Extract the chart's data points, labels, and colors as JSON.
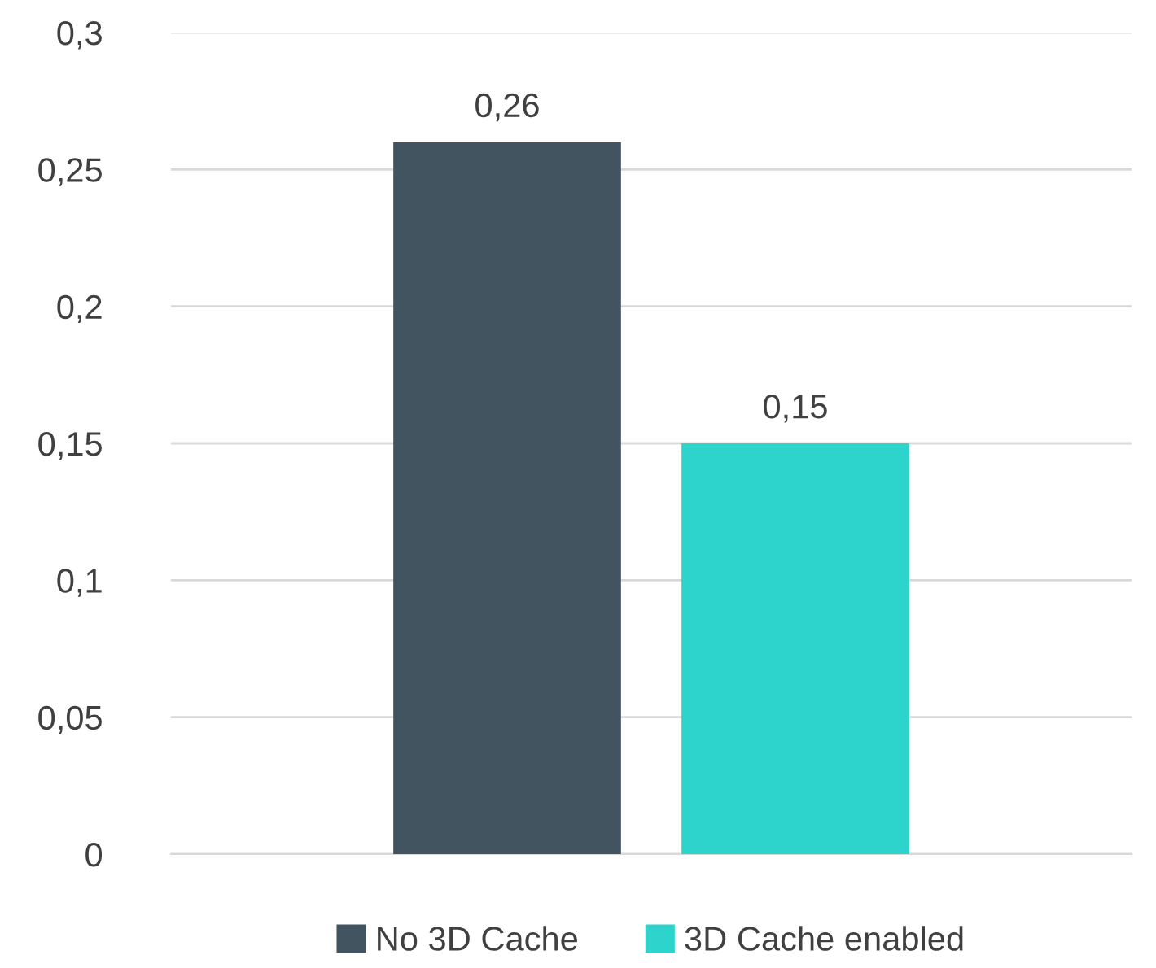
{
  "chart_data": {
    "type": "bar",
    "categories": [
      null
    ],
    "series": [
      {
        "name": "No 3D Cache",
        "color": "#435461",
        "values": [
          0.26
        ],
        "value_labels": [
          "0,26"
        ]
      },
      {
        "name": "3D Cache enabled",
        "color": "#2dd4cc",
        "values": [
          0.15
        ],
        "value_labels": [
          "0,15"
        ]
      }
    ],
    "ylim": [
      0,
      0.3
    ],
    "yticks": [
      {
        "value": 0,
        "label": "0"
      },
      {
        "value": 0.05,
        "label": "0,05"
      },
      {
        "value": 0.1,
        "label": "0,1"
      },
      {
        "value": 0.15,
        "label": "0,15"
      },
      {
        "value": 0.2,
        "label": "0,2"
      },
      {
        "value": 0.25,
        "label": "0,25"
      },
      {
        "value": 0.3,
        "label": "0,3"
      }
    ],
    "grid": "y",
    "legend": "bottom"
  }
}
